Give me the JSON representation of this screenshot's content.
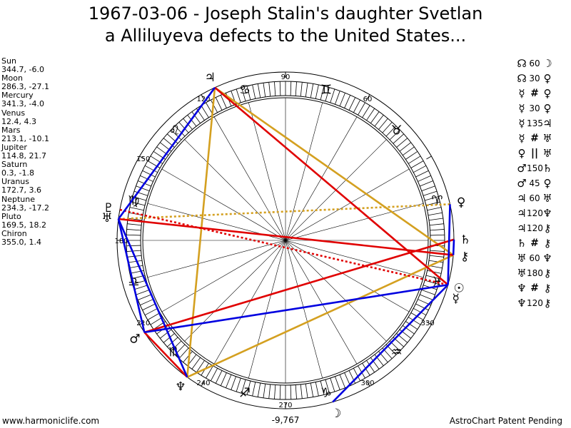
{
  "title": {
    "line1": "1967-03-06 - Joseph Stalin's daughter Svetlan",
    "line2": "a Alliluyeva defects to the United States..."
  },
  "planets": [
    {
      "name": "Sun",
      "coords": "344.7, -6.0",
      "glyph": "☉",
      "color": "#000000"
    },
    {
      "name": "Moon",
      "coords": "286.3, -27.1",
      "glyph": "☽",
      "color": "#000000"
    },
    {
      "name": "Mercury",
      "coords": "341.3, -4.0",
      "glyph": "☿",
      "color": "#000000"
    },
    {
      "name": "Venus",
      "coords": "12.4, 4.3",
      "glyph": "♀",
      "color": "#000000"
    },
    {
      "name": "Mars",
      "coords": "213.1, -10.1",
      "glyph": "♂",
      "color": "#000000"
    },
    {
      "name": "Jupiter",
      "coords": "114.8, 21.7",
      "glyph": "♃",
      "color": "#000000"
    },
    {
      "name": "Saturn",
      "coords": "0.3, -1.8",
      "glyph": "♄",
      "color": "#000000"
    },
    {
      "name": "Uranus",
      "coords": "172.7, 3.6",
      "glyph": "♅",
      "color": "#000000"
    },
    {
      "name": "Neptune",
      "coords": "234.3, -17.2",
      "glyph": "♆",
      "color": "#000000"
    },
    {
      "name": "Pluto",
      "coords": "169.5, 18.2",
      "glyph": "♇",
      "color": "#000000"
    },
    {
      "name": "Chiron",
      "coords": "355.0, 1.4",
      "glyph": "⚷",
      "color": "#000000"
    }
  ],
  "aspects": [
    {
      "p1": "☊",
      "sym": "",
      "num": "60",
      "p2": "☽"
    },
    {
      "p1": "☊",
      "sym": "",
      "num": "30",
      "p2": "♀"
    },
    {
      "p1": "☿",
      "sym": "#",
      "num": "",
      "p2": "♀"
    },
    {
      "p1": "☿",
      "sym": "",
      "num": "30",
      "p2": "♀"
    },
    {
      "p1": "☿",
      "sym": "",
      "num": "135",
      "p2": "♃"
    },
    {
      "p1": "☿",
      "sym": "#",
      "num": "",
      "p2": "♅"
    },
    {
      "p1": "♀",
      "sym": "||",
      "num": "",
      "p2": "♅"
    },
    {
      "p1": "♂",
      "sym": "",
      "num": "150",
      "p2": "♄"
    },
    {
      "p1": "♂",
      "sym": "",
      "num": "45",
      "p2": "♀"
    },
    {
      "p1": "♃",
      "sym": "",
      "num": "60",
      "p2": "♅"
    },
    {
      "p1": "♃",
      "sym": "",
      "num": "120",
      "p2": "♆"
    },
    {
      "p1": "♃",
      "sym": "",
      "num": "120",
      "p2": "⚷"
    },
    {
      "p1": "♄",
      "sym": "#",
      "num": "",
      "p2": "⚷"
    },
    {
      "p1": "♅",
      "sym": "",
      "num": "60",
      "p2": "♆"
    },
    {
      "p1": "♅",
      "sym": "",
      "num": "180",
      "p2": "⚷"
    },
    {
      "p1": "♆",
      "sym": "#",
      "num": "",
      "p2": "⚷"
    },
    {
      "p1": "♆",
      "sym": "",
      "num": "120",
      "p2": "⚷"
    }
  ],
  "wheel": {
    "degree_labels": [
      "90",
      "60",
      "120",
      "150",
      "180",
      "210",
      "240",
      "270",
      "300",
      "330"
    ],
    "zodiac_signs": [
      {
        "glyph": "♈",
        "lon": 15
      },
      {
        "glyph": "♉",
        "lon": 45
      },
      {
        "glyph": "♊",
        "lon": 75
      },
      {
        "glyph": "♋",
        "lon": 105
      },
      {
        "glyph": "♌",
        "lon": 135
      },
      {
        "glyph": "♍",
        "lon": 165
      },
      {
        "glyph": "♎",
        "lon": 195
      },
      {
        "glyph": "♏",
        "lon": 225
      },
      {
        "glyph": "♐",
        "lon": 255
      },
      {
        "glyph": "♑",
        "lon": 285
      },
      {
        "glyph": "♒",
        "lon": 315
      },
      {
        "glyph": "♓",
        "lon": 345
      }
    ],
    "bottom_value": "-9,767",
    "aspect_colors": {
      "trine": "#d4a020",
      "square": "#e00000",
      "sextile": "#0000e0",
      "opposition": "#e00000"
    }
  },
  "footer": {
    "left": "www.harmoniclife.com",
    "right": "AstroChart Patent Pending"
  }
}
